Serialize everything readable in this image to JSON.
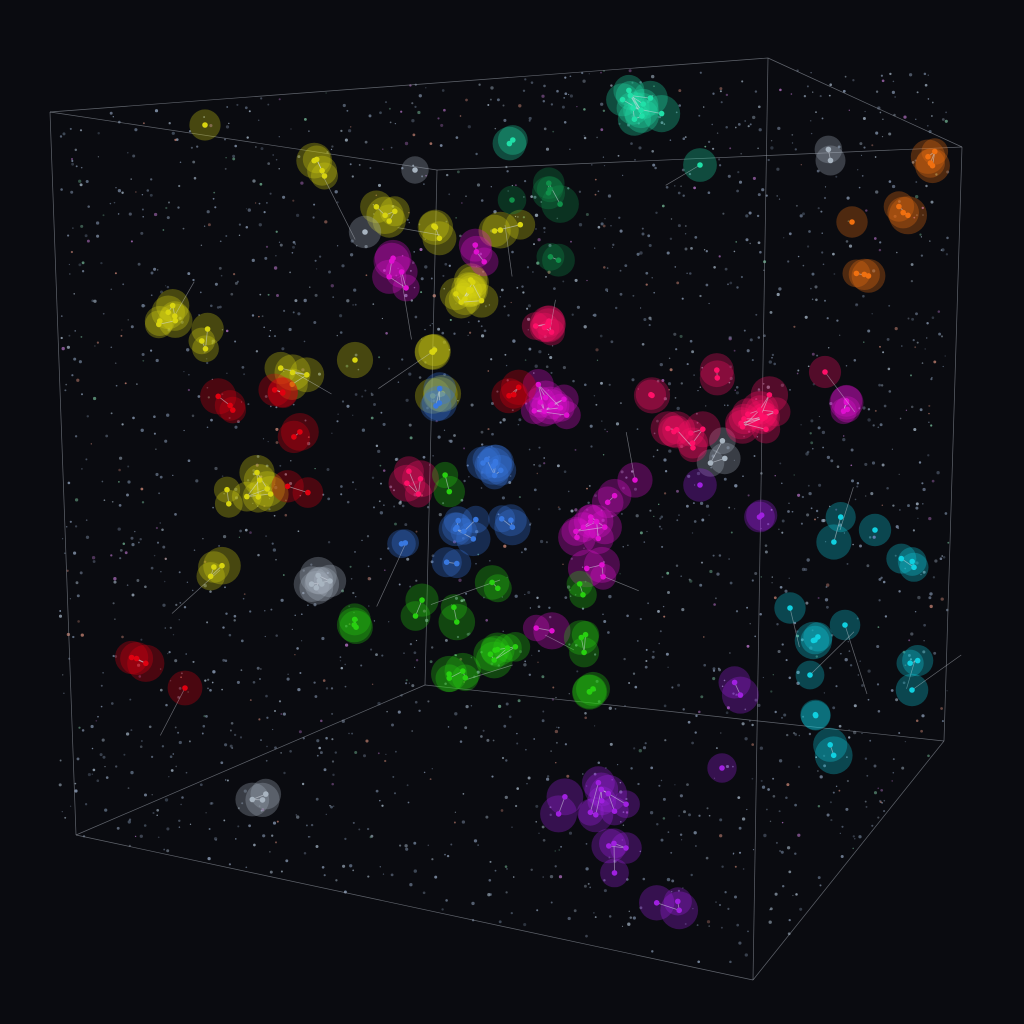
{
  "chart_data": {
    "type": "scatter",
    "dimensions": 3,
    "title": "",
    "legend": "none",
    "grid": false,
    "bounding_box": "wireframe cube",
    "background_color": "#0a0b10",
    "background_point_color": "#7c8ca4",
    "edge_color": "#d8dde6",
    "series": [
      {
        "color": "#d8d410"
      },
      {
        "color": "#20e0a8"
      },
      {
        "color": "#10904a"
      },
      {
        "color": "#f07010"
      },
      {
        "color": "#a8b4c0"
      },
      {
        "color": "#e010d0"
      },
      {
        "color": "#ff1068"
      },
      {
        "color": "#e00010"
      },
      {
        "color": "#3878e0"
      },
      {
        "color": "#28d010"
      },
      {
        "color": "#a020e0"
      },
      {
        "color": "#10d0e0"
      }
    ]
  }
}
